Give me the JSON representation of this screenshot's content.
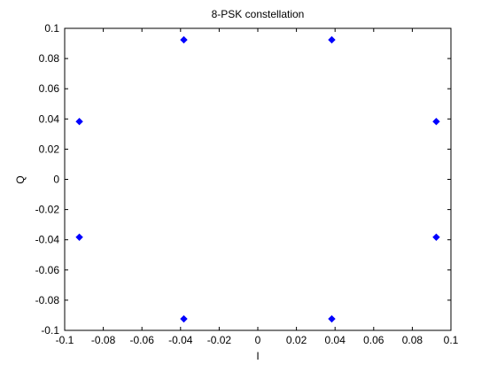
{
  "chart_data": {
    "type": "scatter",
    "title": "8-PSK constellation",
    "xlabel": "I",
    "ylabel": "Q",
    "xlim": [
      -0.1,
      0.1
    ],
    "ylim": [
      -0.1,
      0.1
    ],
    "xticks": [
      -0.1,
      -0.08,
      -0.06,
      -0.04,
      -0.02,
      0,
      0.02,
      0.04,
      0.06,
      0.08,
      0.1
    ],
    "yticks": [
      -0.1,
      -0.08,
      -0.06,
      -0.04,
      -0.02,
      0,
      0.02,
      0.04,
      0.06,
      0.08,
      0.1
    ],
    "xtick_labels": [
      "-0.1",
      "-0.08",
      "-0.06",
      "-0.04",
      "-0.02",
      "0",
      "0.02",
      "0.04",
      "0.06",
      "0.08",
      "0.1"
    ],
    "ytick_labels": [
      "-0.1",
      "-0.08",
      "-0.06",
      "-0.04",
      "-0.02",
      "0",
      "0.02",
      "0.04",
      "0.06",
      "0.08",
      "0.1"
    ],
    "grid": false,
    "series": [
      {
        "color": "#0000ff",
        "marker": "diamond",
        "points": [
          {
            "x": -0.0383,
            "y": 0.0924
          },
          {
            "x": 0.0383,
            "y": 0.0924
          },
          {
            "x": 0.0924,
            "y": 0.0383
          },
          {
            "x": 0.0924,
            "y": -0.0383
          },
          {
            "x": 0.0383,
            "y": -0.0924
          },
          {
            "x": -0.0383,
            "y": -0.0924
          },
          {
            "x": -0.0924,
            "y": -0.0383
          },
          {
            "x": -0.0924,
            "y": 0.0383
          }
        ]
      }
    ]
  }
}
